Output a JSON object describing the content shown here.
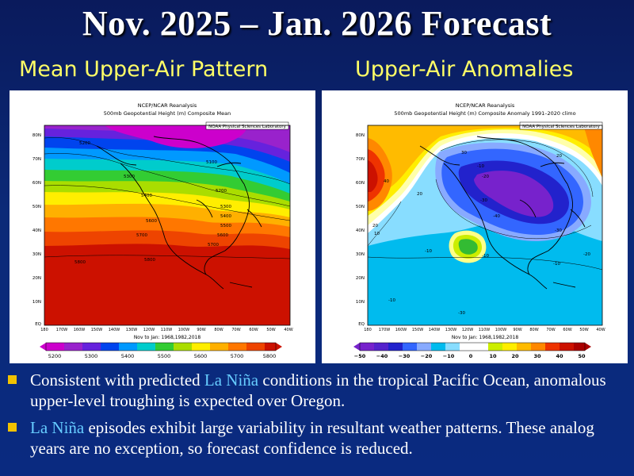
{
  "slide": {
    "title": "Nov. 2025 – Jan. 2026 Forecast",
    "left_heading": "Mean Upper-Air Pattern",
    "right_heading": "Upper-Air Anomalies"
  },
  "left_map": {
    "header_line1": "NCEP/NCAR Reanalysis",
    "header_line2": "500mb Geopotential Height (m) Composite Mean",
    "lab_label": "NOAA Physical Sciences Laboratory",
    "footer": "Nov to Jan: 1968,1982,2018",
    "lat_labels": [
      "80N",
      "70N",
      "60N",
      "50N",
      "40N",
      "30N",
      "20N",
      "10N",
      "EQ"
    ],
    "lon_labels": [
      "180",
      "170W",
      "160W",
      "150W",
      "140W",
      "130W",
      "120W",
      "110W",
      "100W",
      "90W",
      "80W",
      "70W",
      "60W",
      "50W",
      "40W"
    ],
    "colorbar_labels": [
      "5200",
      "5300",
      "5400",
      "5500",
      "5600",
      "5700",
      "5800"
    ],
    "contour_labels": [
      "5200",
      "5100",
      "5300",
      "5400",
      "5600",
      "5700",
      "5800",
      "5200",
      "5300",
      "5400",
      "5500",
      "5600",
      "5700",
      "5800"
    ]
  },
  "right_map": {
    "header_line1": "NCEP/NCAR Reanalysis",
    "header_line2": "500mb Geopotential Height (m) Composite Anomaly 1991–2020 climo",
    "lab_label": "NOAA Physical Sciences Laboratory",
    "footer": "Nov to Jan: 1968,1982,2018",
    "lat_labels": [
      "80N",
      "70N",
      "60N",
      "50N",
      "40N",
      "30N",
      "20N",
      "10N",
      "EQ"
    ],
    "lon_labels": [
      "180",
      "170W",
      "160W",
      "150W",
      "140W",
      "130W",
      "120W",
      "110W",
      "100W",
      "90W",
      "80W",
      "70W",
      "60W",
      "50W",
      "40W"
    ],
    "colorbar_labels": [
      "−50",
      "−40",
      "−30",
      "−20",
      "−10",
      "0",
      "10",
      "20",
      "30",
      "40",
      "50"
    ],
    "contour_labels": [
      "30",
      "20",
      "-10",
      "-20",
      "-30",
      "-40",
      "-30",
      "-20",
      "-10",
      "20",
      "10",
      "-10",
      "-10",
      "-30",
      "20",
      "-10",
      "40"
    ]
  },
  "bullets": [
    {
      "before": "Consistent with predicted ",
      "highlight": "La Niña",
      "after": " conditions in the tropical Pacific Ocean, anomalous upper-level troughing is expected over Oregon."
    },
    {
      "before": "",
      "highlight": "La Niña",
      "after": " episodes exhibit large variability in resultant weather patterns. These analog years are no exception, so forecast confidence is reduced."
    }
  ],
  "colors": {
    "background": "#0a2a80",
    "title_text": "#ffffff",
    "heading_text": "#ffff66",
    "bullet_marker": "#f2c200",
    "highlight_text": "#66ccff"
  }
}
